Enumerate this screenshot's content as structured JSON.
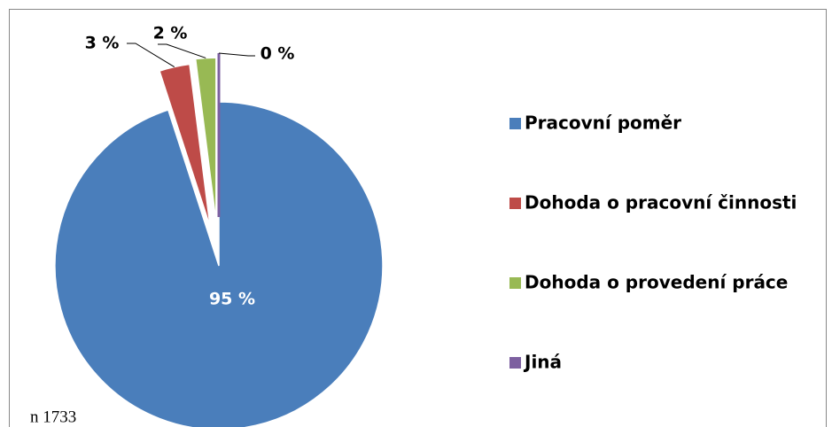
{
  "chart_data": {
    "type": "pie",
    "categories": [
      "Pracovní poměr",
      "Dohoda o pracovní činnosti",
      "Dohoda o provedení práce",
      "Jiná"
    ],
    "values": [
      95,
      3,
      2,
      0
    ],
    "value_labels": [
      "95 %",
      "3 %",
      "2 %",
      "0 %"
    ],
    "colors": [
      "#4a7ebb",
      "#be4b48",
      "#98b954",
      "#7d60a0"
    ],
    "annotation": "n 1733",
    "legend": "right"
  }
}
